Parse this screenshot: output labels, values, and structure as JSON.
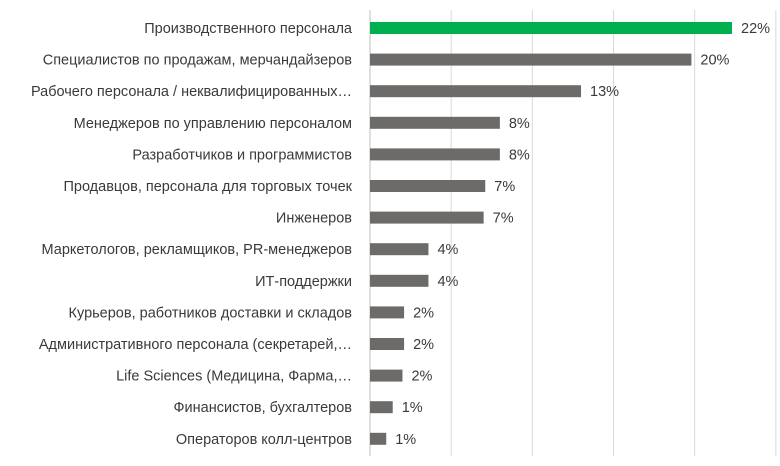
{
  "chart_data": {
    "type": "bar",
    "orientation": "horizontal",
    "categories": [
      "Производственного персонала",
      "Специалистов по продажам, мерчандайзеров",
      "Рабочего персонала / неквалифицированных…",
      "Менеджеров по управлению персоналом",
      "Разработчиков и программистов",
      "Продавцов, персонала для торговых точек",
      "Инженеров",
      "Маркетологов, рекламщиков, PR-менеджеров",
      "ИТ-поддержки",
      "Курьеров, работников доставки и складов",
      "Административного персонала (секретарей,…",
      "Life Sciences (Медицина, Фарма,…",
      "Финансистов, бухгалтеров",
      "Операторов колл-центров"
    ],
    "values": [
      22.3,
      19.8,
      13.0,
      8.0,
      8.0,
      7.1,
      7.0,
      3.6,
      3.6,
      2.1,
      2.1,
      2.0,
      1.4,
      1.0
    ],
    "value_labels": [
      "22%",
      "20%",
      "13%",
      "8%",
      "8%",
      "7%",
      "7%",
      "4%",
      "4%",
      "2%",
      "2%",
      "2%",
      "1%",
      "1%"
    ],
    "unit": "%",
    "xlim": [
      0,
      25
    ],
    "grid": true,
    "highlight_index": 0,
    "colors": {
      "highlight": "#00b050",
      "bar": "#6d6b69",
      "grid": "#d9d9d9",
      "text": "#3a3a3a"
    }
  }
}
